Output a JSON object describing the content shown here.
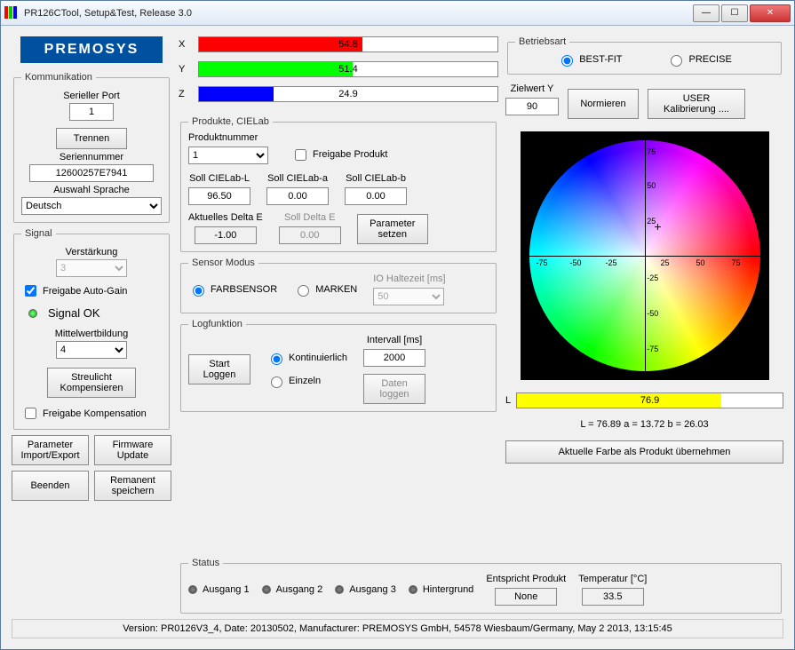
{
  "window": {
    "title": "PR126CTool, Setup&Test, Release 3.0"
  },
  "logo": "PREMOSYS",
  "comm": {
    "legend": "Kommunikation",
    "port_label": "Serieller Port",
    "port_value": "1",
    "disconnect_btn": "Trennen",
    "serial_label": "Seriennummer",
    "serial_value": "12600257E7941",
    "lang_label": "Auswahl Sprache",
    "lang_value": "Deutsch"
  },
  "signal": {
    "legend": "Signal",
    "gain_label": "Verstärkung",
    "gain_value": "3",
    "autogain_label": "Freigabe Auto-Gain",
    "status_text": "Signal OK",
    "avg_label": "Mittelwertbildung",
    "avg_value": "4",
    "stray_btn": "Streulicht\nKompensieren",
    "comp_label": "Freigabe Kompensation"
  },
  "left_btns": {
    "import": "Parameter\nImport/Export",
    "firmware": "Firmware\nUpdate",
    "exit": "Beenden",
    "remanent": "Remanent\nspeichern"
  },
  "xyz": {
    "x": {
      "label": "X",
      "value": "54.8",
      "pct": 54.8,
      "color": "#ff0000"
    },
    "y": {
      "label": "Y",
      "value": "51.4",
      "pct": 51.4,
      "color": "#00ff00"
    },
    "z": {
      "label": "Z",
      "value": "24.9",
      "pct": 24.9,
      "color": "#0000ff"
    }
  },
  "products": {
    "legend": "Produkte, CIELab",
    "num_label": "Produktnummer",
    "num_value": "1",
    "release_label": "Freigabe Produkt",
    "soll_L_label": "Soll CIELab-L",
    "soll_L": "96.50",
    "soll_a_label": "Soll CIELab-a",
    "soll_a": "0.00",
    "soll_b_label": "Soll CIELab-b",
    "soll_b": "0.00",
    "akt_dE_label": "Aktuelles Delta E",
    "akt_dE": "-1.00",
    "soll_dE_label": "Soll Delta E",
    "soll_dE": "0.00",
    "set_btn": "Parameter\nsetzen"
  },
  "sensor": {
    "legend": "Sensor Modus",
    "color_label": "FARBSENSOR",
    "mark_label": "MARKEN",
    "hold_label": "IO Haltezeit [ms]",
    "hold_value": "50"
  },
  "log": {
    "legend": "Logfunktion",
    "start_btn": "Start\nLoggen",
    "cont_label": "Kontinuierlich",
    "single_label": "Einzeln",
    "interval_label": "Intervall [ms]",
    "interval_value": "2000",
    "data_btn": "Daten\nloggen"
  },
  "mode": {
    "legend": "Betriebsart",
    "best": "BEST-FIT",
    "precise": "PRECISE"
  },
  "targetY": {
    "label": "Zielwert Y",
    "value": "90"
  },
  "norm_btn": "Normieren",
  "usercal_btn": "USER\nKalibrierung ....",
  "wheel": {
    "ticks": [
      "-75",
      "-50",
      "-25",
      "25",
      "50",
      "75"
    ],
    "cross": {
      "a": 13.72,
      "b": 26.03
    }
  },
  "L": {
    "label": "L",
    "value": "76.9",
    "pct": 76.9,
    "fill": "#ffff00"
  },
  "lab_readout": "L = 76.89   a = 13.72   b = 26.03",
  "adopt_btn": "Aktuelle Farbe als Produkt übernehmen",
  "status": {
    "legend": "Status",
    "out1": "Ausgang 1",
    "out2": "Ausgang 2",
    "out3": "Ausgang 3",
    "bg": "Hintergrund",
    "match_label": "Entspricht Produkt",
    "match_value": "None",
    "temp_label": "Temperatur [°C]",
    "temp_value": "33.5"
  },
  "footer": "Version: PR0126V3_4, Date: 20130502, Manufacturer: PREMOSYS GmbH, 54578 Wiesbaum/Germany, May  2 2013, 13:15:45"
}
